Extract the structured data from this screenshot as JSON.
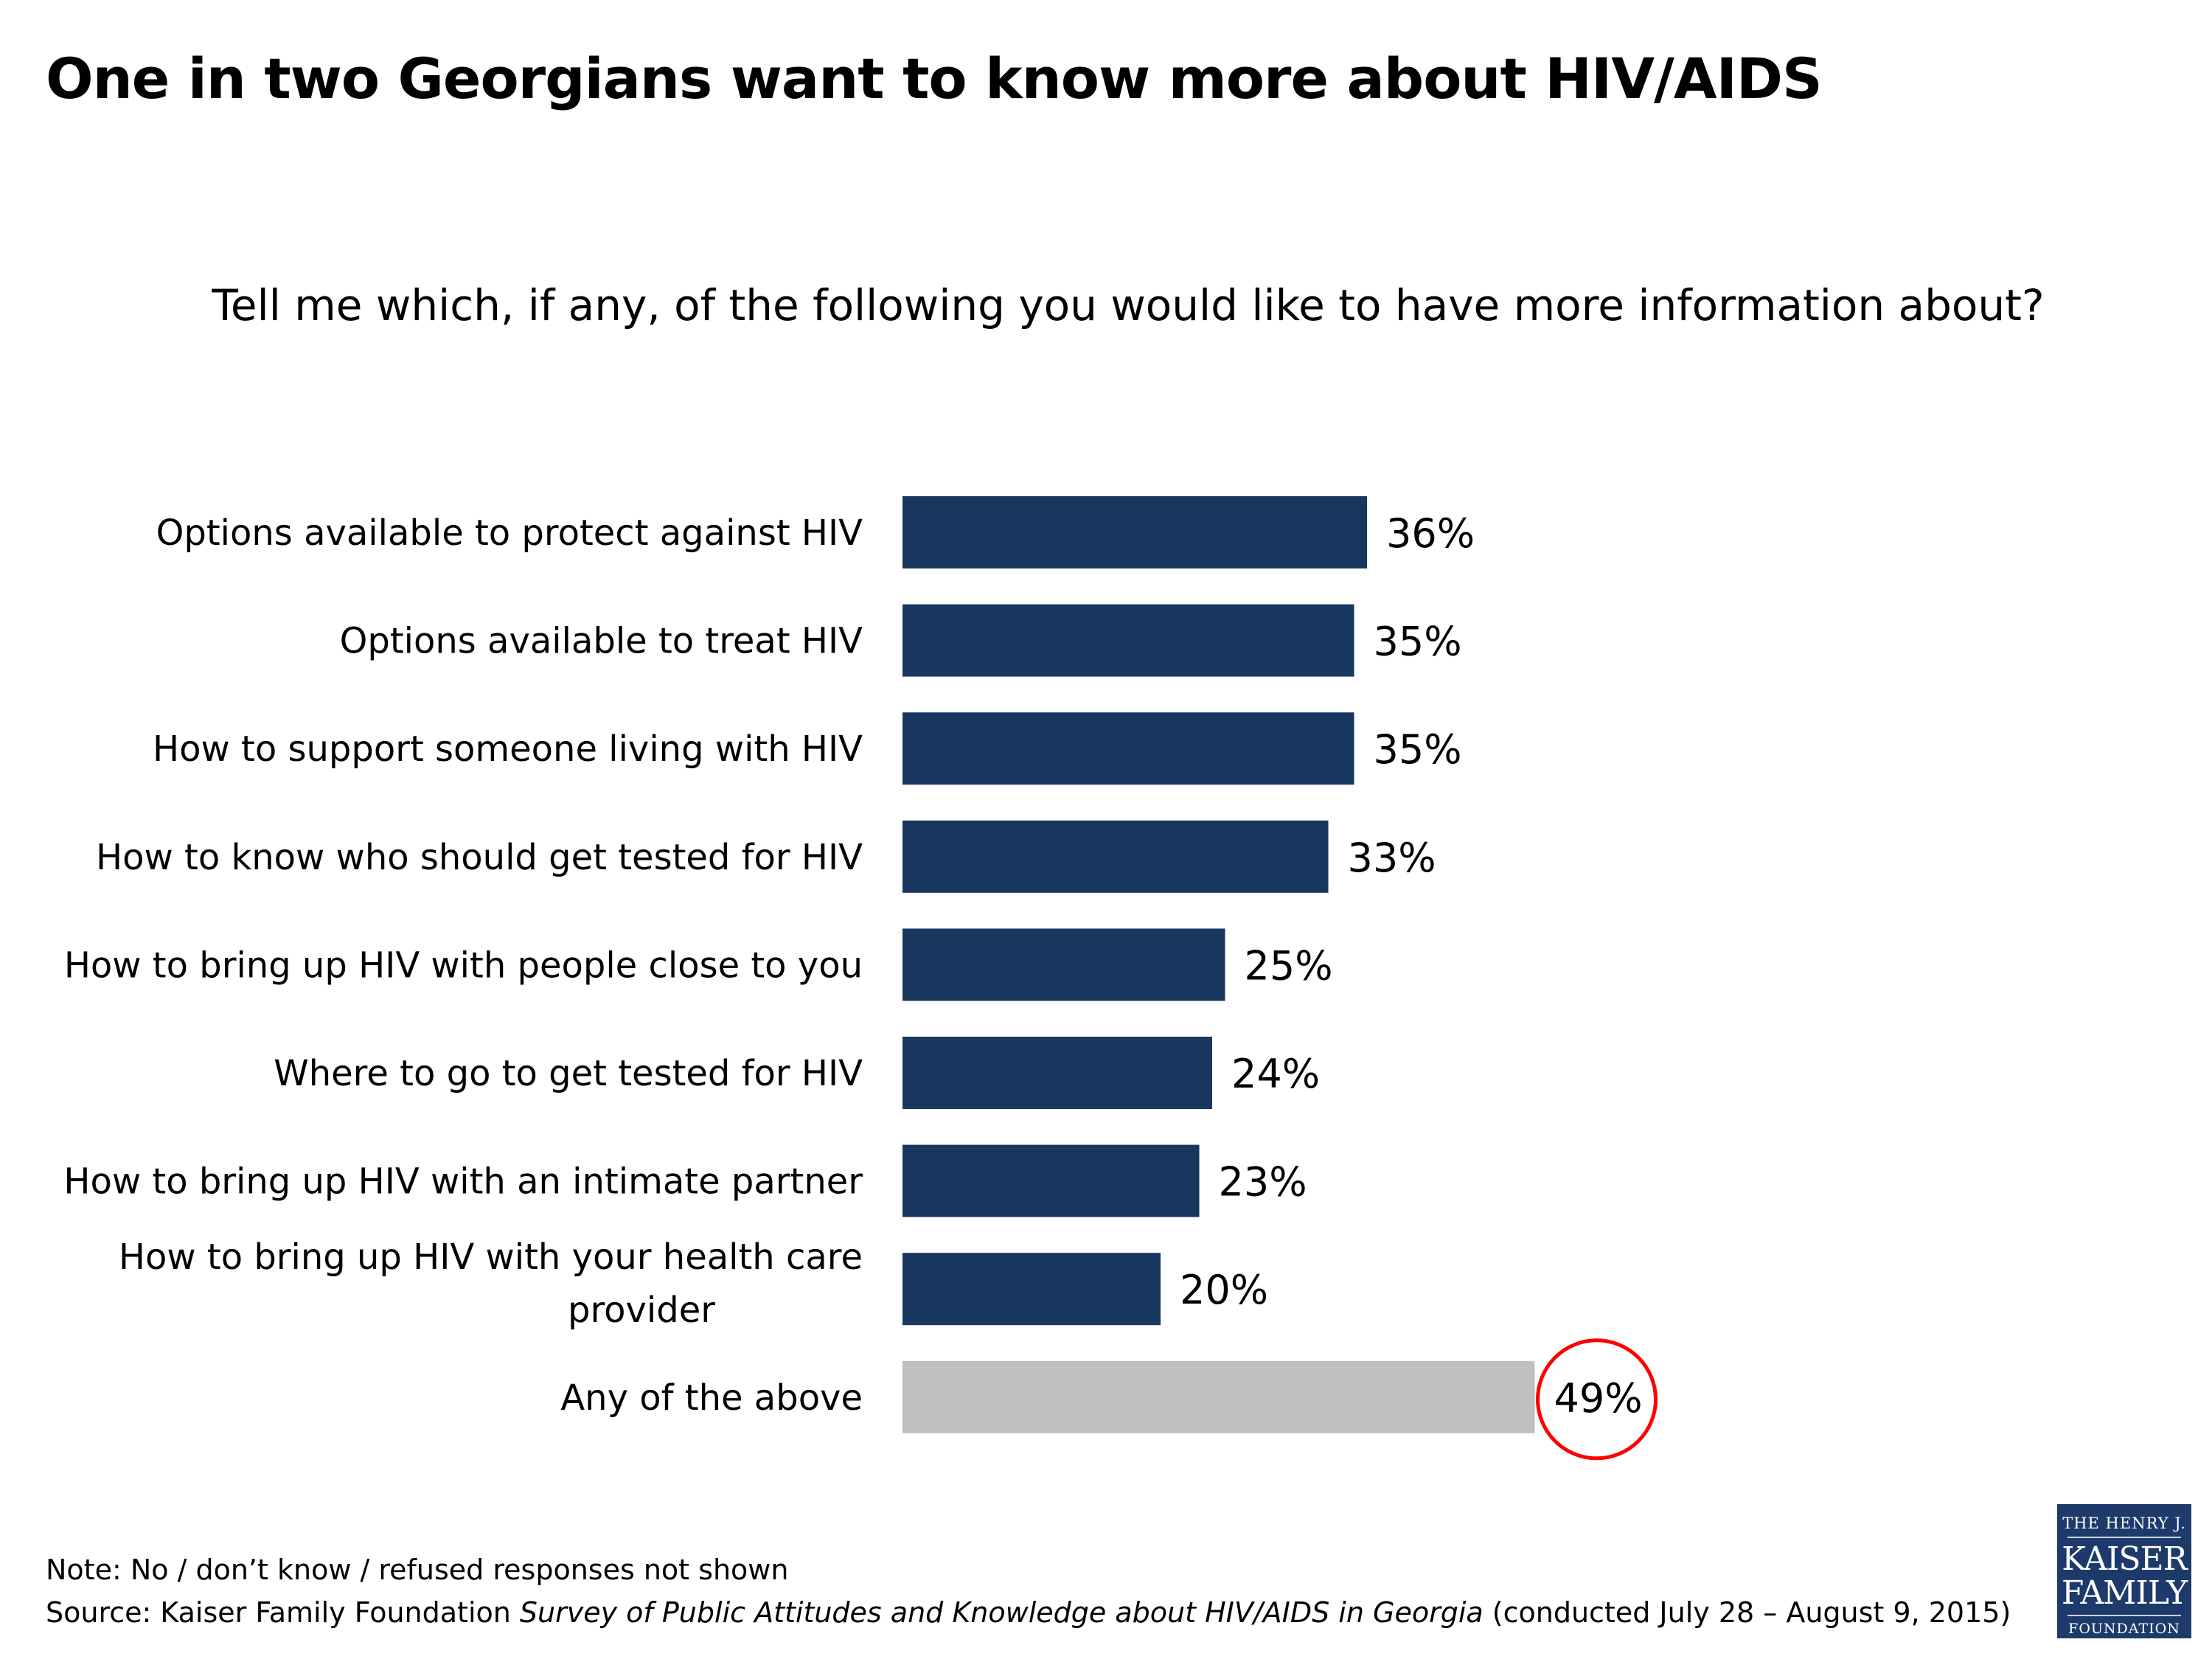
{
  "title": "One in two Georgians want to know more about HIV/AIDS",
  "subtitle": "Tell me which, if any, of the following you would like to have more information about?",
  "colors": {
    "bar": "#17375e",
    "highlight_bar": "#bfbfbf",
    "circle": "#ff0000"
  },
  "chart_data": {
    "type": "bar",
    "orientation": "horizontal",
    "title": "Tell me which, if any, of the following you would like to have more information about?",
    "xlabel": "",
    "ylabel": "",
    "xlim": [
      0,
      100
    ],
    "grid": false,
    "categories": [
      "Options available to protect against HIV",
      "Options available to treat HIV",
      "How to support someone living with HIV",
      "How to know who should get tested for HIV",
      "How to bring up HIV with people close to you",
      "Where to go to get tested for HIV",
      "How to bring up HIV with an intimate partner",
      "How to bring up HIV with your health care provider",
      "Any of the above"
    ],
    "values": [
      36,
      35,
      35,
      33,
      25,
      24,
      23,
      20,
      49
    ],
    "data_labels": [
      "36%",
      "35%",
      "35%",
      "33%",
      "25%",
      "24%",
      "23%",
      "20%",
      "49%"
    ],
    "highlighted": [
      false,
      false,
      false,
      false,
      false,
      false,
      false,
      false,
      true
    ],
    "annotations": [
      "49% value circled in red"
    ]
  },
  "footer": {
    "note": "Note: No / don’t know / refused responses not shown",
    "source_prefix": "Source: Kaiser Family Foundation ",
    "source_italic": "Survey of Public Attitudes and Knowledge about HIV/AIDS in Georgia",
    "source_suffix": " (conducted July 28 – August 9, 2015)"
  },
  "logo": {
    "line1": "THE HENRY J.",
    "line2": "KAISER",
    "line3": "FAMILY",
    "line4": "FOUNDATION"
  }
}
